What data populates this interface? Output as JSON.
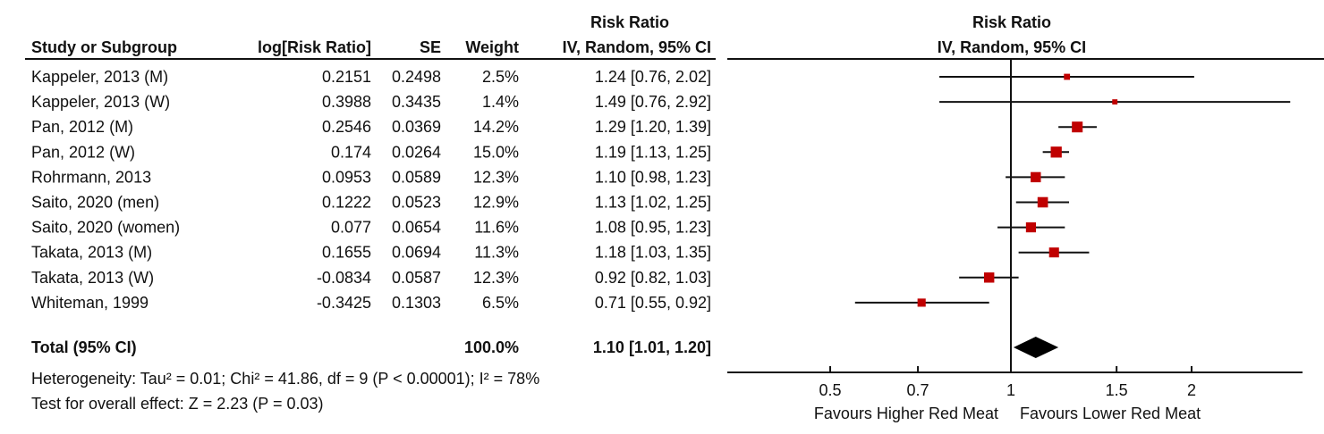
{
  "chart_data": {
    "type": "forest",
    "table_headers": {
      "study": "Study or Subgroup",
      "log_rr": "log[Risk Ratio]",
      "se": "SE",
      "weight": "Weight",
      "ci_title": "Risk Ratio",
      "ci_subtitle": "IV, Random, 95% CI"
    },
    "plot_headers": {
      "title": "Risk Ratio",
      "subtitle": "IV, Random, 95% CI"
    },
    "studies": [
      {
        "name": "Kappeler, 2013 (M)",
        "log_rr": "0.2151",
        "se": "0.2498",
        "weight": "2.5%",
        "weight_value": 2.5,
        "ci_text": "1.24 [0.76, 2.02]",
        "rr": 1.24,
        "lo": 0.76,
        "hi": 2.02
      },
      {
        "name": "Kappeler, 2013 (W)",
        "log_rr": "0.3988",
        "se": "0.3435",
        "weight": "1.4%",
        "weight_value": 1.4,
        "ci_text": "1.49 [0.76, 2.92]",
        "rr": 1.49,
        "lo": 0.76,
        "hi": 2.92
      },
      {
        "name": "Pan, 2012 (M)",
        "log_rr": "0.2546",
        "se": "0.0369",
        "weight": "14.2%",
        "weight_value": 14.2,
        "ci_text": "1.29 [1.20, 1.39]",
        "rr": 1.29,
        "lo": 1.2,
        "hi": 1.39
      },
      {
        "name": "Pan, 2012 (W)",
        "log_rr": "0.174",
        "se": "0.0264",
        "weight": "15.0%",
        "weight_value": 15.0,
        "ci_text": "1.19 [1.13, 1.25]",
        "rr": 1.19,
        "lo": 1.13,
        "hi": 1.25
      },
      {
        "name": "Rohrmann, 2013",
        "log_rr": "0.0953",
        "se": "0.0589",
        "weight": "12.3%",
        "weight_value": 12.3,
        "ci_text": "1.10 [0.98, 1.23]",
        "rr": 1.1,
        "lo": 0.98,
        "hi": 1.23
      },
      {
        "name": "Saito, 2020 (men)",
        "log_rr": "0.1222",
        "se": "0.0523",
        "weight": "12.9%",
        "weight_value": 12.9,
        "ci_text": "1.13 [1.02, 1.25]",
        "rr": 1.13,
        "lo": 1.02,
        "hi": 1.25
      },
      {
        "name": "Saito, 2020 (women)",
        "log_rr": "0.077",
        "se": "0.0654",
        "weight": "11.6%",
        "weight_value": 11.6,
        "ci_text": "1.08 [0.95, 1.23]",
        "rr": 1.08,
        "lo": 0.95,
        "hi": 1.23
      },
      {
        "name": "Takata, 2013 (M)",
        "log_rr": "0.1655",
        "se": "0.0694",
        "weight": "11.3%",
        "weight_value": 11.3,
        "ci_text": "1.18 [1.03, 1.35]",
        "rr": 1.18,
        "lo": 1.03,
        "hi": 1.35
      },
      {
        "name": "Takata, 2013 (W)",
        "log_rr": "-0.0834",
        "se": "0.0587",
        "weight": "12.3%",
        "weight_value": 12.3,
        "ci_text": "0.92 [0.82, 1.03]",
        "rr": 0.92,
        "lo": 0.82,
        "hi": 1.03
      },
      {
        "name": "Whiteman, 1999",
        "log_rr": "-0.3425",
        "se": "0.1303",
        "weight": "6.5%",
        "weight_value": 6.5,
        "ci_text": "0.71 [0.55, 0.92]",
        "rr": 0.71,
        "lo": 0.55,
        "hi": 0.92
      }
    ],
    "total": {
      "label": "Total (95% CI)",
      "weight": "100.0%",
      "ci_text": "1.10 [1.01, 1.20]",
      "rr": 1.1,
      "lo": 1.01,
      "hi": 1.2
    },
    "heterogeneity": "Heterogeneity: Tau² = 0.01; Chi² = 41.86, df = 9 (P < 0.00001); I² = 78%",
    "overall_effect": "Test for overall effect: Z = 2.23 (P = 0.03)",
    "x_axis": {
      "scale": "log",
      "ticks": [
        0.5,
        0.7,
        1,
        1.5,
        2
      ],
      "tick_labels": [
        "0.5",
        "0.7",
        "1",
        "1.5",
        "2"
      ],
      "xlim": [
        0.34,
        2.96
      ]
    },
    "favours_left": "Favours Higher Red Meat",
    "favours_right": "Favours Lower Red Meat",
    "colors": {
      "marker": "#c00000",
      "line": "#111111",
      "diamond": "#000000"
    }
  }
}
